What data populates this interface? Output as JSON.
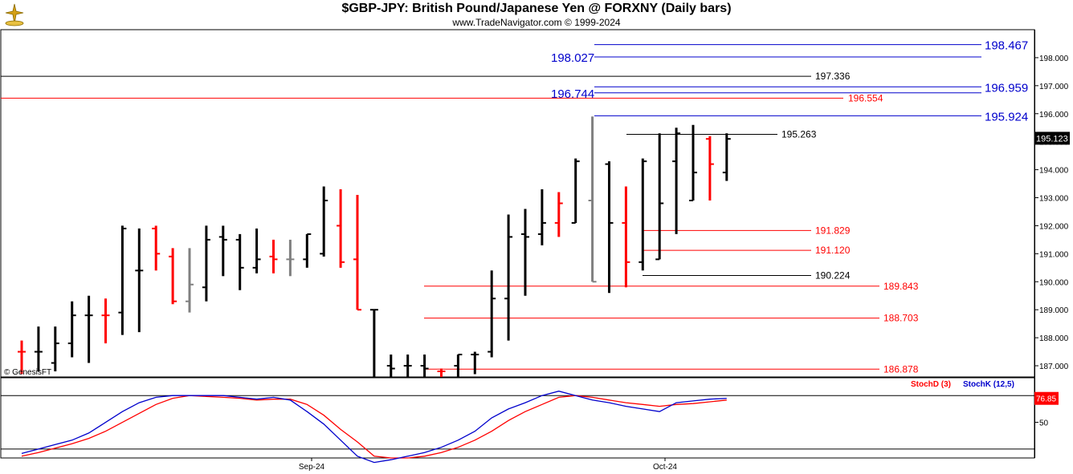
{
  "header": {
    "title": "$GBP-JPY:  British Pound/Japanese Yen @ FORXNY  (Daily bars)",
    "subtitle": "www.TradeNavigator.com © 1999-2024",
    "logo_icon": "trade-navigator-logo-icon"
  },
  "chart_data": {
    "type": "ohlc",
    "instrument": "$GBP-JPY",
    "ylim": [
      186.6,
      199.0
    ],
    "y_ticks": [
      "198.000",
      "197.000",
      "196.000",
      "195.000",
      "194.000",
      "193.000",
      "192.000",
      "191.000",
      "190.000",
      "189.000",
      "188.000",
      "187.000"
    ],
    "last_price": "195.123",
    "x_labels": [
      "Sep-24",
      "Oct-24"
    ],
    "watermark": "© GenesisFT",
    "up_color": "#000000",
    "down_color": "#ff0000",
    "neutral_color": "#808080",
    "bars": [
      {
        "o": 187.5,
        "h": 187.9,
        "l": 186.7,
        "c": 187.5,
        "dir": "down"
      },
      {
        "o": 187.5,
        "h": 188.4,
        "l": 186.8,
        "c": 187.5,
        "dir": "up"
      },
      {
        "o": 187.1,
        "h": 188.4,
        "l": 186.8,
        "c": 187.8,
        "dir": "up"
      },
      {
        "o": 187.8,
        "h": 189.3,
        "l": 187.3,
        "c": 188.8,
        "dir": "up"
      },
      {
        "o": 188.8,
        "h": 189.5,
        "l": 187.1,
        "c": 188.8,
        "dir": "up"
      },
      {
        "o": 188.8,
        "h": 189.4,
        "l": 187.8,
        "c": 188.8,
        "dir": "down"
      },
      {
        "o": 188.9,
        "h": 192.0,
        "l": 188.1,
        "c": 191.9,
        "dir": "up"
      },
      {
        "o": 190.4,
        "h": 191.9,
        "l": 188.2,
        "c": 190.4,
        "dir": "up"
      },
      {
        "o": 191.9,
        "h": 192.0,
        "l": 190.4,
        "c": 191.0,
        "dir": "down"
      },
      {
        "o": 190.9,
        "h": 191.2,
        "l": 189.2,
        "c": 189.3,
        "dir": "down"
      },
      {
        "o": 189.3,
        "h": 191.2,
        "l": 188.9,
        "c": 189.9,
        "dir": "neutral"
      },
      {
        "o": 189.8,
        "h": 192.0,
        "l": 189.3,
        "c": 191.5,
        "dir": "up"
      },
      {
        "o": 191.6,
        "h": 192.0,
        "l": 190.2,
        "c": 191.5,
        "dir": "up"
      },
      {
        "o": 191.5,
        "h": 191.7,
        "l": 189.7,
        "c": 190.5,
        "dir": "up"
      },
      {
        "o": 190.5,
        "h": 191.9,
        "l": 190.3,
        "c": 190.8,
        "dir": "up"
      },
      {
        "o": 190.9,
        "h": 191.5,
        "l": 190.3,
        "c": 190.8,
        "dir": "down"
      },
      {
        "o": 190.8,
        "h": 191.5,
        "l": 190.2,
        "c": 190.8,
        "dir": "neutral"
      },
      {
        "o": 190.8,
        "h": 191.7,
        "l": 190.5,
        "c": 191.7,
        "dir": "up"
      },
      {
        "o": 191.0,
        "h": 193.4,
        "l": 190.9,
        "c": 192.9,
        "dir": "up"
      },
      {
        "o": 192.0,
        "h": 193.3,
        "l": 190.5,
        "c": 190.7,
        "dir": "down"
      },
      {
        "o": 190.8,
        "h": 193.1,
        "l": 189.0,
        "c": 189.0,
        "dir": "down"
      },
      {
        "o": 189.0,
        "h": 189.0,
        "l": 186.5,
        "c": 189.0,
        "dir": "up"
      },
      {
        "o": 187.0,
        "h": 187.4,
        "l": 186.5,
        "c": 186.9,
        "dir": "up"
      },
      {
        "o": 187.0,
        "h": 187.4,
        "l": 186.5,
        "c": 187.0,
        "dir": "up"
      },
      {
        "o": 187.0,
        "h": 187.4,
        "l": 186.5,
        "c": 186.9,
        "dir": "up"
      },
      {
        "o": 186.8,
        "h": 186.9,
        "l": 186.5,
        "c": 186.8,
        "dir": "down"
      },
      {
        "o": 187.0,
        "h": 187.4,
        "l": 186.5,
        "c": 187.4,
        "dir": "up"
      },
      {
        "o": 187.4,
        "h": 187.5,
        "l": 186.7,
        "c": 187.4,
        "dir": "up"
      },
      {
        "o": 187.5,
        "h": 190.4,
        "l": 187.3,
        "c": 189.4,
        "dir": "up"
      },
      {
        "o": 189.4,
        "h": 192.4,
        "l": 187.9,
        "c": 191.6,
        "dir": "up"
      },
      {
        "o": 191.7,
        "h": 192.6,
        "l": 189.5,
        "c": 191.6,
        "dir": "up"
      },
      {
        "o": 191.7,
        "h": 193.3,
        "l": 191.3,
        "c": 192.1,
        "dir": "up"
      },
      {
        "o": 192.1,
        "h": 193.2,
        "l": 191.6,
        "c": 192.8,
        "dir": "down"
      },
      {
        "o": 192.1,
        "h": 194.4,
        "l": 192.1,
        "c": 194.3,
        "dir": "up"
      },
      {
        "o": 192.9,
        "h": 195.9,
        "l": 190.0,
        "c": 190.0,
        "dir": "neutral"
      },
      {
        "o": 194.2,
        "h": 194.3,
        "l": 189.6,
        "c": 192.1,
        "dir": "up"
      },
      {
        "o": 192.1,
        "h": 193.4,
        "l": 189.8,
        "c": 190.7,
        "dir": "down"
      },
      {
        "o": 190.7,
        "h": 194.4,
        "l": 190.4,
        "c": 194.3,
        "dir": "up"
      },
      {
        "o": 190.8,
        "h": 195.3,
        "l": 190.8,
        "c": 192.8,
        "dir": "up"
      },
      {
        "o": 194.3,
        "h": 195.5,
        "l": 191.7,
        "c": 195.3,
        "dir": "up"
      },
      {
        "o": 192.9,
        "h": 195.6,
        "l": 192.9,
        "c": 193.9,
        "dir": "up"
      },
      {
        "o": 195.1,
        "h": 195.2,
        "l": 192.9,
        "c": 194.2,
        "dir": "down"
      },
      {
        "o": 193.9,
        "h": 195.3,
        "l": 193.6,
        "c": 195.1,
        "dir": "up"
      }
    ],
    "levels": [
      {
        "value": 198.467,
        "label": "198.467",
        "color": "#0000cc",
        "style": "big",
        "span": "mid"
      },
      {
        "value": 198.027,
        "label": "198.027",
        "color": "#0000cc",
        "style": "big-left",
        "span": "mid"
      },
      {
        "value": 197.336,
        "label": "197.336",
        "color": "#000000",
        "style": "small",
        "span": "full"
      },
      {
        "value": 196.959,
        "label": "196.959",
        "color": "#0000cc",
        "style": "big",
        "span": "mid"
      },
      {
        "value": 196.744,
        "label": "196.744",
        "color": "#0000cc",
        "style": "big-left",
        "span": "mid"
      },
      {
        "value": 196.554,
        "label": "196.554",
        "color": "#ff0000",
        "style": "small",
        "span": "full"
      },
      {
        "value": 195.924,
        "label": "195.924",
        "color": "#0000cc",
        "style": "big",
        "span": "mid"
      },
      {
        "value": 195.263,
        "label": "195.263",
        "color": "#000000",
        "style": "small",
        "span": "short"
      },
      {
        "value": 191.829,
        "label": "191.829",
        "color": "#ff0000",
        "style": "small",
        "span": "short"
      },
      {
        "value": 191.12,
        "label": "191.120",
        "color": "#ff0000",
        "style": "small",
        "span": "short"
      },
      {
        "value": 190.224,
        "label": "190.224",
        "color": "#000000",
        "style": "small",
        "span": "short"
      },
      {
        "value": 189.843,
        "label": "189.843",
        "color": "#ff0000",
        "style": "small",
        "span": "long"
      },
      {
        "value": 188.703,
        "label": "188.703",
        "color": "#ff0000",
        "style": "small",
        "span": "long"
      },
      {
        "value": 186.878,
        "label": "186.878",
        "color": "#ff0000",
        "style": "small",
        "span": "long"
      }
    ],
    "indicator": {
      "stochd_label": "StochD (3)",
      "stochk_label": "StochK (12,5)",
      "stochd_color": "#ff0000",
      "stochk_color": "#0000cc",
      "last_value": "76.85",
      "tick_label": "50",
      "ylim": [
        10,
        100
      ],
      "upper_line": 80,
      "lower_line": 20,
      "stochk": [
        15,
        20,
        25,
        30,
        38,
        50,
        62,
        72,
        78,
        80,
        80,
        80,
        80,
        78,
        76,
        78,
        75,
        62,
        48,
        30,
        12,
        5,
        8,
        12,
        16,
        22,
        30,
        40,
        55,
        65,
        72,
        80,
        85,
        80,
        75,
        72,
        68,
        65,
        62,
        72,
        74,
        76,
        77
      ],
      "stochd": [
        12,
        16,
        21,
        26,
        32,
        40,
        50,
        60,
        70,
        77,
        80,
        79,
        78,
        77,
        75,
        76,
        76,
        70,
        58,
        42,
        28,
        12,
        10,
        10,
        12,
        16,
        22,
        30,
        40,
        52,
        62,
        70,
        78,
        80,
        78,
        75,
        72,
        70,
        68,
        70,
        71,
        73,
        75
      ]
    }
  }
}
